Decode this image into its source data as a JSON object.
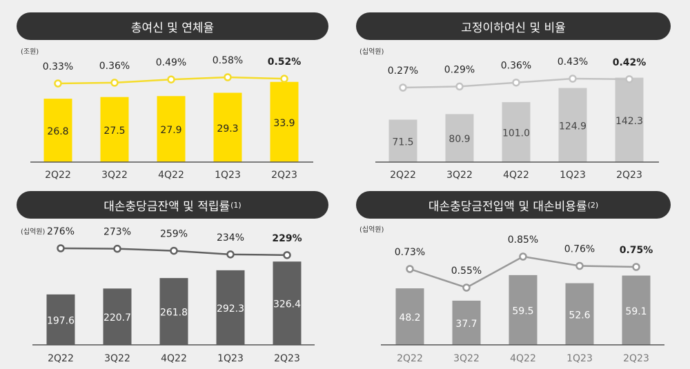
{
  "chart_data": [
    {
      "type": "bar",
      "title": "총여신 및 연체율",
      "title_note": "",
      "unit": "(조원)",
      "categories": [
        "2Q22",
        "3Q22",
        "4Q22",
        "1Q23",
        "2Q23"
      ],
      "series": [
        {
          "kind": "bar",
          "values": [
            26.8,
            27.5,
            27.9,
            29.3,
            33.9
          ],
          "color": "#ffdd00"
        },
        {
          "kind": "line",
          "values": [
            0.33,
            0.36,
            0.49,
            0.58,
            0.52
          ],
          "labels": [
            "0.33%",
            "0.36%",
            "0.49%",
            "0.58%",
            "0.52%"
          ],
          "color": "#f5dc2a"
        }
      ]
    },
    {
      "type": "bar",
      "title": "고정이하여신 및 비율",
      "title_note": "",
      "unit": "(십억원)",
      "categories": [
        "2Q22",
        "3Q22",
        "4Q22",
        "1Q23",
        "2Q23"
      ],
      "series": [
        {
          "kind": "bar",
          "values": [
            71.5,
            80.9,
            101.0,
            124.9,
            142.3
          ],
          "labels": [
            "71.5",
            "80.9",
            "101.0",
            "124.9",
            "142.3"
          ],
          "color": "#c8c8c8"
        },
        {
          "kind": "line",
          "values": [
            0.27,
            0.29,
            0.36,
            0.43,
            0.42
          ],
          "labels": [
            "0.27%",
            "0.29%",
            "0.36%",
            "0.43%",
            "0.42%"
          ],
          "color": "#c2c2c2"
        }
      ]
    },
    {
      "type": "bar",
      "title": "대손충당금잔액 및 적립률",
      "title_note": "(1)",
      "unit": "(십억원)",
      "categories": [
        "2Q22",
        "3Q22",
        "4Q22",
        "1Q23",
        "2Q23"
      ],
      "series": [
        {
          "kind": "bar",
          "values": [
            197.6,
            220.7,
            261.8,
            292.3,
            326.4
          ],
          "color": "#606060"
        },
        {
          "kind": "line",
          "values": [
            276,
            273,
            259,
            234,
            229
          ],
          "labels": [
            "276%",
            "273%",
            "259%",
            "234%",
            "229%"
          ],
          "color": "#606060"
        }
      ]
    },
    {
      "type": "bar",
      "title": "대손충당금전입액 및 대손비용률",
      "title_note": "(2)",
      "unit": "(십억원)",
      "categories": [
        "2Q22",
        "3Q22",
        "4Q22",
        "1Q23",
        "2Q23"
      ],
      "series": [
        {
          "kind": "bar",
          "values": [
            48.2,
            37.7,
            59.5,
            52.6,
            59.1
          ],
          "color": "#999999"
        },
        {
          "kind": "line",
          "values": [
            0.73,
            0.55,
            0.85,
            0.76,
            0.75
          ],
          "labels": [
            "0.73%",
            "0.55%",
            "0.85%",
            "0.76%",
            "0.75%"
          ],
          "color": "#999999"
        }
      ]
    }
  ]
}
